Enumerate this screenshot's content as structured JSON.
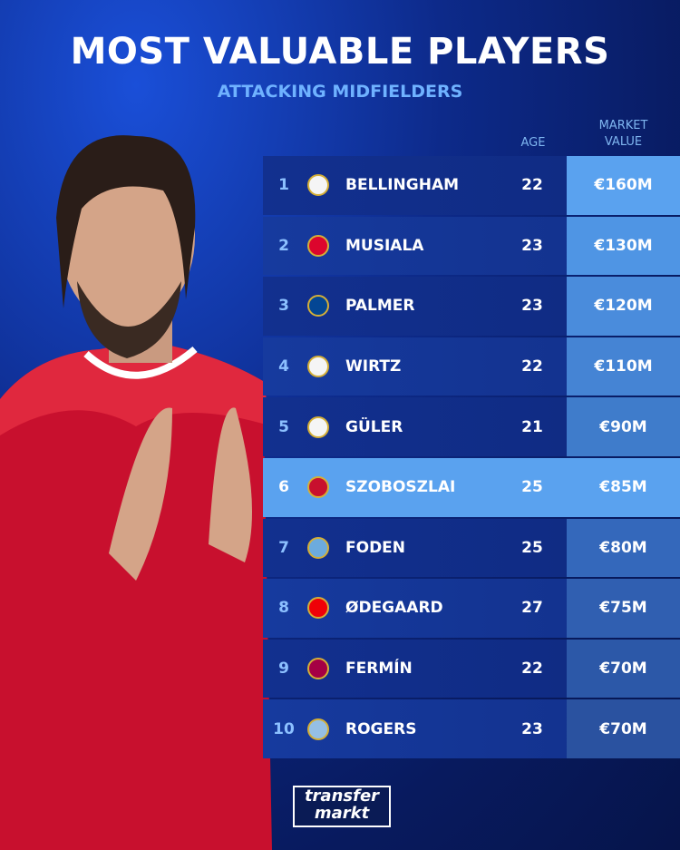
{
  "header": {
    "title": "MOST VALUABLE PLAYERS",
    "subtitle": "ATTACKING MIDFIELDERS"
  },
  "table": {
    "columns": [
      "AGE",
      "MARKET VALUE"
    ],
    "rows": [
      [
        1,
        "BELLINGHAM",
        22,
        "€160M"
      ],
      [
        2,
        "MUSIALA",
        23,
        "€130M"
      ],
      [
        3,
        "PALMER",
        23,
        "€120M"
      ],
      [
        4,
        "WIRTZ",
        22,
        "€110M"
      ],
      [
        5,
        "GÜLER",
        21,
        "€90M"
      ],
      [
        6,
        "SZOBOSZLAI",
        25,
        "€85M"
      ],
      [
        7,
        "FODEN",
        25,
        "€80M"
      ],
      [
        8,
        "ØDEGAARD",
        27,
        "€75M"
      ],
      [
        9,
        "FERMÍN",
        22,
        "€70M"
      ],
      [
        10,
        "ROGERS",
        23,
        "€70M"
      ]
    ]
  },
  "footer": {
    "logo": [
      "transfer",
      "markt"
    ]
  }
}
